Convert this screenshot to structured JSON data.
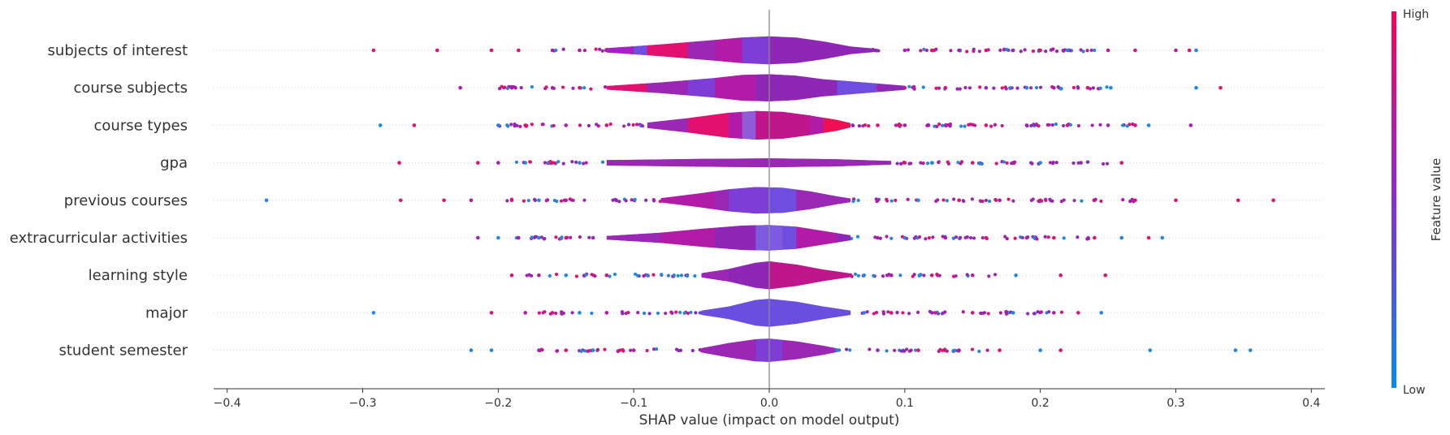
{
  "chart_data": {
    "type": "scatter",
    "subtype": "shap-violin-summary",
    "xlabel": "SHAP value (impact on model output)",
    "xlim": [
      -0.41,
      0.41
    ],
    "xticks": [
      -0.4,
      -0.3,
      -0.2,
      -0.1,
      0.0,
      0.1,
      0.2,
      0.3,
      0.4
    ],
    "xtick_labels": [
      "−0.4",
      "−0.3",
      "−0.2",
      "−0.1",
      "0.0",
      "0.1",
      "0.2",
      "0.3",
      "0.4"
    ],
    "grid": false,
    "features": [
      {
        "name": "subjects of interest",
        "color": "#8f27b6",
        "violin": [
          [
            -0.12,
            0.12
          ],
          [
            -0.08,
            0.33
          ],
          [
            -0.04,
            0.58
          ],
          [
            -0.02,
            0.72
          ],
          [
            0.0,
            0.78
          ],
          [
            0.02,
            0.72
          ],
          [
            0.04,
            0.5
          ],
          [
            0.06,
            0.22
          ],
          [
            0.08,
            0.08
          ]
        ],
        "bands": [
          [
            -0.12,
            -0.1,
            "#a81ec9"
          ],
          [
            -0.1,
            -0.09,
            "#6f4de0"
          ],
          [
            -0.09,
            -0.06,
            "#e4106f"
          ],
          [
            -0.06,
            -0.04,
            "#9a28b5"
          ],
          [
            -0.04,
            -0.02,
            "#b21ba8"
          ],
          [
            -0.02,
            0.0,
            "#7d3dd6"
          ]
        ],
        "points": [
          [
            -0.292,
            "#e4106f"
          ],
          [
            -0.245,
            "#e4106f"
          ],
          [
            -0.205,
            "#e4106f"
          ],
          [
            -0.185,
            "#e4106f"
          ],
          [
            -0.16,
            "#b21ba8"
          ],
          [
            -0.14,
            "#b21ba8"
          ],
          [
            0.1,
            "#a81ec9"
          ],
          [
            0.12,
            "#e4106f"
          ],
          [
            0.14,
            "#b21ba8"
          ],
          [
            0.16,
            "#e4106f"
          ],
          [
            0.18,
            "#9a28b5"
          ],
          [
            0.2,
            "#e4106f"
          ],
          [
            0.22,
            "#1e88e5"
          ],
          [
            0.25,
            "#b21ba8"
          ],
          [
            0.27,
            "#e4106f"
          ],
          [
            0.3,
            "#b21ba8"
          ],
          [
            0.31,
            "#e4106f"
          ],
          [
            0.315,
            "#1e88e5"
          ]
        ],
        "spread": [
          [
            -0.16,
            -0.12
          ],
          [
            0.07,
            0.25
          ]
        ]
      },
      {
        "name": "course subjects",
        "color": "#8f27b6",
        "violin": [
          [
            -0.12,
            0.1
          ],
          [
            -0.08,
            0.3
          ],
          [
            -0.04,
            0.55
          ],
          [
            -0.02,
            0.72
          ],
          [
            0.0,
            0.76
          ],
          [
            0.02,
            0.68
          ],
          [
            0.04,
            0.48
          ],
          [
            0.07,
            0.3
          ],
          [
            0.1,
            0.12
          ]
        ],
        "bands": [
          [
            -0.12,
            -0.09,
            "#e4106f"
          ],
          [
            -0.09,
            -0.06,
            "#9a28b5"
          ],
          [
            -0.06,
            -0.04,
            "#7d3dd6"
          ],
          [
            -0.04,
            -0.01,
            "#b21ba8"
          ],
          [
            -0.01,
            0.02,
            "#8f27b6"
          ],
          [
            0.05,
            0.08,
            "#6f4de0"
          ]
        ],
        "points": [
          [
            -0.228,
            "#b21ba8"
          ],
          [
            -0.19,
            "#b21ba8"
          ],
          [
            -0.16,
            "#9a28b5"
          ],
          [
            -0.14,
            "#e4106f"
          ],
          [
            0.08,
            "#b21ba8"
          ],
          [
            0.1,
            "#b21ba8"
          ],
          [
            0.13,
            "#e4106f"
          ],
          [
            0.16,
            "#9a28b5"
          ],
          [
            0.19,
            "#1e88e5"
          ],
          [
            0.21,
            "#b21ba8"
          ],
          [
            0.235,
            "#e4106f"
          ],
          [
            0.252,
            "#1e88e5"
          ],
          [
            0.315,
            "#1e88e5"
          ],
          [
            0.333,
            "#e4106f"
          ]
        ],
        "spread": [
          [
            -0.2,
            -0.12
          ],
          [
            0.09,
            0.25
          ]
        ]
      },
      {
        "name": "course types",
        "color": "#b21ba8",
        "violin": [
          [
            -0.09,
            0.15
          ],
          [
            -0.06,
            0.4
          ],
          [
            -0.03,
            0.7
          ],
          [
            -0.01,
            0.8
          ],
          [
            0.01,
            0.75
          ],
          [
            0.03,
            0.55
          ],
          [
            0.05,
            0.3
          ],
          [
            0.06,
            0.12
          ]
        ],
        "bands": [
          [
            -0.09,
            -0.06,
            "#9a28b5"
          ],
          [
            -0.06,
            -0.03,
            "#e4106f"
          ],
          [
            -0.03,
            -0.02,
            "#b21ba8"
          ],
          [
            -0.02,
            -0.01,
            "#8f5bd8"
          ],
          [
            -0.01,
            0.03,
            "#c0168c"
          ],
          [
            0.04,
            0.06,
            "#ee1052"
          ]
        ],
        "points": [
          [
            -0.287,
            "#1e88e5"
          ],
          [
            -0.262,
            "#e4106f"
          ],
          [
            -0.2,
            "#1e88e5"
          ],
          [
            -0.18,
            "#e4106f"
          ],
          [
            -0.15,
            "#b21ba8"
          ],
          [
            -0.12,
            "#e4106f"
          ],
          [
            0.08,
            "#e4106f"
          ],
          [
            0.1,
            "#b21ba8"
          ],
          [
            0.13,
            "#9a28b5"
          ],
          [
            0.16,
            "#e4106f"
          ],
          [
            0.19,
            "#b21ba8"
          ],
          [
            0.22,
            "#e4106f"
          ],
          [
            0.25,
            "#9a28b5"
          ],
          [
            0.27,
            "#e4106f"
          ],
          [
            0.28,
            "#1e88e5"
          ],
          [
            0.311,
            "#b21ba8"
          ]
        ],
        "spread": [
          [
            -0.2,
            -0.09
          ],
          [
            0.06,
            0.28
          ]
        ]
      },
      {
        "name": "gpa",
        "color": "#8f27b6",
        "violin": [
          [
            -0.12,
            0.15
          ],
          [
            -0.05,
            0.22
          ],
          [
            0.0,
            0.25
          ],
          [
            0.05,
            0.2
          ],
          [
            0.09,
            0.1
          ]
        ],
        "bands": [
          [
            -0.12,
            0.09,
            "#9a28b5"
          ]
        ],
        "points": [
          [
            -0.273,
            "#e4106f"
          ],
          [
            -0.215,
            "#e4106f"
          ],
          [
            -0.2,
            "#b21ba8"
          ],
          [
            -0.18,
            "#1e88e5"
          ],
          [
            -0.16,
            "#e4106f"
          ],
          [
            -0.14,
            "#1e88e5"
          ],
          [
            0.1,
            "#e4106f"
          ],
          [
            0.12,
            "#1e88e5"
          ],
          [
            0.15,
            "#e4106f"
          ],
          [
            0.18,
            "#b21ba8"
          ],
          [
            0.2,
            "#1e88e5"
          ],
          [
            0.23,
            "#9a28b5"
          ],
          [
            0.26,
            "#e4106f"
          ]
        ],
        "spread": [
          [
            -0.19,
            -0.12
          ],
          [
            0.09,
            0.26
          ]
        ]
      },
      {
        "name": "previous courses",
        "color": "#8f27b6",
        "violin": [
          [
            -0.08,
            0.12
          ],
          [
            -0.05,
            0.4
          ],
          [
            -0.03,
            0.62
          ],
          [
            -0.01,
            0.74
          ],
          [
            0.01,
            0.7
          ],
          [
            0.03,
            0.5
          ],
          [
            0.05,
            0.22
          ],
          [
            0.06,
            0.1
          ]
        ],
        "bands": [
          [
            -0.08,
            -0.04,
            "#b21ba8"
          ],
          [
            -0.04,
            -0.03,
            "#9a28b5"
          ],
          [
            -0.03,
            0.0,
            "#7d3dd6"
          ],
          [
            0.0,
            0.02,
            "#6f4de0"
          ],
          [
            0.02,
            0.06,
            "#9a28b5"
          ]
        ],
        "points": [
          [
            -0.371,
            "#1e88e5"
          ],
          [
            -0.272,
            "#e4106f"
          ],
          [
            -0.24,
            "#e4106f"
          ],
          [
            -0.22,
            "#b21ba8"
          ],
          [
            -0.19,
            "#e4106f"
          ],
          [
            -0.17,
            "#1e88e5"
          ],
          [
            -0.15,
            "#b21ba8"
          ],
          [
            0.08,
            "#b21ba8"
          ],
          [
            0.11,
            "#1e88e5"
          ],
          [
            0.14,
            "#e4106f"
          ],
          [
            0.17,
            "#b21ba8"
          ],
          [
            0.2,
            "#e4106f"
          ],
          [
            0.24,
            "#b21ba8"
          ],
          [
            0.27,
            "#e4106f"
          ],
          [
            0.3,
            "#e4106f"
          ],
          [
            0.346,
            "#e4106f"
          ],
          [
            0.372,
            "#e4106f"
          ]
        ],
        "spread": [
          [
            -0.2,
            -0.08
          ],
          [
            0.06,
            0.27
          ]
        ]
      },
      {
        "name": "extracurricular activities",
        "color": "#8f27b6",
        "violin": [
          [
            -0.12,
            0.1
          ],
          [
            -0.08,
            0.28
          ],
          [
            -0.05,
            0.5
          ],
          [
            -0.02,
            0.68
          ],
          [
            0.0,
            0.72
          ],
          [
            0.02,
            0.62
          ],
          [
            0.04,
            0.38
          ],
          [
            0.06,
            0.14
          ]
        ],
        "bands": [
          [
            -0.12,
            -0.08,
            "#9a28b5"
          ],
          [
            -0.08,
            -0.04,
            "#b21ba8"
          ],
          [
            -0.04,
            -0.01,
            "#8f27b6"
          ],
          [
            -0.01,
            0.01,
            "#7d5be0"
          ],
          [
            0.01,
            0.02,
            "#6f4de0"
          ],
          [
            0.02,
            0.05,
            "#b21ba8"
          ]
        ],
        "points": [
          [
            -0.215,
            "#9a28b5"
          ],
          [
            -0.2,
            "#1e88e5"
          ],
          [
            -0.185,
            "#b21ba8"
          ],
          [
            -0.17,
            "#1e88e5"
          ],
          [
            -0.15,
            "#e4106f"
          ],
          [
            -0.13,
            "#9a28b5"
          ],
          [
            0.08,
            "#b21ba8"
          ],
          [
            0.1,
            "#1e88e5"
          ],
          [
            0.13,
            "#b21ba8"
          ],
          [
            0.16,
            "#e4106f"
          ],
          [
            0.19,
            "#9a28b5"
          ],
          [
            0.21,
            "#e4106f"
          ],
          [
            0.24,
            "#e4106f"
          ],
          [
            0.26,
            "#1e88e5"
          ],
          [
            0.28,
            "#e4106f"
          ],
          [
            0.29,
            "#1e88e5"
          ]
        ],
        "spread": [
          [
            -0.19,
            -0.12
          ],
          [
            0.06,
            0.24
          ]
        ]
      },
      {
        "name": "learning style",
        "color": "#b21ba8",
        "violin": [
          [
            -0.05,
            0.12
          ],
          [
            -0.03,
            0.35
          ],
          [
            -0.01,
            0.7
          ],
          [
            0.0,
            0.78
          ],
          [
            0.02,
            0.6
          ],
          [
            0.04,
            0.32
          ],
          [
            0.06,
            0.1
          ]
        ],
        "bands": [
          [
            -0.05,
            -0.03,
            "#9a28b5"
          ],
          [
            -0.03,
            0.0,
            "#8f27b6"
          ],
          [
            0.0,
            0.06,
            "#c0168c"
          ]
        ],
        "points": [
          [
            -0.19,
            "#e4106f"
          ],
          [
            -0.17,
            "#b21ba8"
          ],
          [
            -0.15,
            "#1e88e5"
          ],
          [
            -0.12,
            "#e4106f"
          ],
          [
            -0.09,
            "#1e88e5"
          ],
          [
            0.07,
            "#1e88e5"
          ],
          [
            0.09,
            "#b21ba8"
          ],
          [
            0.12,
            "#e4106f"
          ],
          [
            0.15,
            "#b21ba8"
          ],
          [
            0.182,
            "#1e88e5"
          ],
          [
            0.215,
            "#e4106f"
          ],
          [
            0.248,
            "#e4106f"
          ]
        ],
        "spread": [
          [
            -0.18,
            -0.05
          ],
          [
            0.05,
            0.17
          ]
        ]
      },
      {
        "name": "major",
        "color": "#6a4ee0",
        "violin": [
          [
            -0.05,
            0.12
          ],
          [
            -0.03,
            0.35
          ],
          [
            -0.01,
            0.72
          ],
          [
            0.0,
            0.78
          ],
          [
            0.02,
            0.62
          ],
          [
            0.04,
            0.35
          ],
          [
            0.06,
            0.12
          ]
        ],
        "bands": [
          [
            -0.05,
            0.06,
            "#6a4ee0"
          ]
        ],
        "points": [
          [
            -0.292,
            "#1e88e5"
          ],
          [
            -0.205,
            "#e4106f"
          ],
          [
            -0.18,
            "#b21ba8"
          ],
          [
            -0.16,
            "#e4106f"
          ],
          [
            -0.14,
            "#1e88e5"
          ],
          [
            -0.12,
            "#b21ba8"
          ],
          [
            0.07,
            "#1e88e5"
          ],
          [
            0.09,
            "#e4106f"
          ],
          [
            0.12,
            "#9a28b5"
          ],
          [
            0.15,
            "#e4106f"
          ],
          [
            0.18,
            "#1e88e5"
          ],
          [
            0.21,
            "#b21ba8"
          ],
          [
            0.228,
            "#e4106f"
          ],
          [
            0.245,
            "#1e88e5"
          ]
        ],
        "spread": [
          [
            -0.17,
            -0.05
          ],
          [
            0.05,
            0.22
          ]
        ]
      },
      {
        "name": "student semester",
        "color": "#8f27b6",
        "violin": [
          [
            -0.05,
            0.12
          ],
          [
            -0.03,
            0.4
          ],
          [
            -0.01,
            0.62
          ],
          [
            0.0,
            0.65
          ],
          [
            0.02,
            0.5
          ],
          [
            0.04,
            0.25
          ],
          [
            0.05,
            0.1
          ]
        ],
        "bands": [
          [
            -0.05,
            -0.01,
            "#9a28b5"
          ],
          [
            -0.01,
            0.01,
            "#7d3dd6"
          ],
          [
            0.01,
            0.05,
            "#9a28b5"
          ]
        ],
        "points": [
          [
            -0.22,
            "#1e88e5"
          ],
          [
            -0.205,
            "#1e88e5"
          ],
          [
            -0.17,
            "#9a28b5"
          ],
          [
            -0.15,
            "#e4106f"
          ],
          [
            -0.13,
            "#1e88e5"
          ],
          [
            -0.1,
            "#b21ba8"
          ],
          [
            0.05,
            "#1e88e5"
          ],
          [
            0.08,
            "#9a28b5"
          ],
          [
            0.11,
            "#e4106f"
          ],
          [
            0.14,
            "#b21ba8"
          ],
          [
            0.17,
            "#e4106f"
          ],
          [
            0.2,
            "#1e88e5"
          ],
          [
            0.215,
            "#e4106f"
          ],
          [
            0.281,
            "#1e88e5"
          ],
          [
            0.344,
            "#1e88e5"
          ],
          [
            0.355,
            "#1e88e5"
          ]
        ],
        "spread": [
          [
            -0.17,
            -0.05
          ],
          [
            0.04,
            0.17
          ]
        ]
      }
    ],
    "colorbar": {
      "label": "Feature value",
      "high_label": "High",
      "low_label": "Low",
      "high_color": "#ff0052",
      "mid_color": "#8a2ae0",
      "low_color": "#008bfb"
    }
  }
}
